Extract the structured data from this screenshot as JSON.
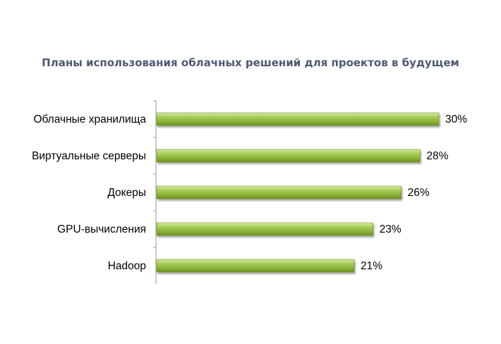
{
  "chart_data": {
    "type": "bar",
    "orientation": "horizontal",
    "title": "Планы использования облачных решений для проектов в будущем",
    "categories": [
      "Облачные хранилища",
      "Виртуальные серверы",
      "Докеры",
      "GPU-вычисления",
      "Hadoop"
    ],
    "values": [
      30,
      28,
      26,
      23,
      21
    ],
    "value_labels": [
      "30%",
      "28%",
      "26%",
      "23%",
      "21%"
    ],
    "unit": "%",
    "xlim": [
      0,
      30
    ],
    "grid": false,
    "legend": "none",
    "bar_color": "#8db33a"
  }
}
